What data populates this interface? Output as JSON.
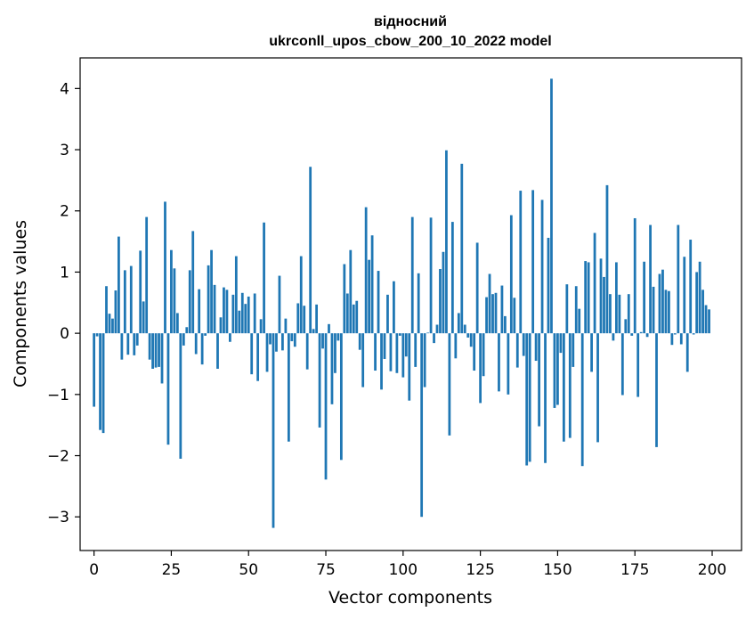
{
  "chart_data": {
    "type": "bar",
    "title_line1": "відносний",
    "title_line2": "ukrconll_upos_cbow_200_10_2022 model",
    "xlabel": "Vector components",
    "ylabel": "Components values",
    "xlim": [
      -4.5,
      209.5
    ],
    "ylim": [
      -3.55,
      4.5
    ],
    "xticks": [
      0,
      25,
      50,
      75,
      100,
      125,
      150,
      175,
      200
    ],
    "yticks": [
      -3,
      -2,
      -1,
      0,
      1,
      2,
      3,
      4
    ],
    "grid": false,
    "legend": "none",
    "bar_color": "#1f77b4",
    "x": [
      0,
      1,
      2,
      3,
      4,
      5,
      6,
      7,
      8,
      9,
      10,
      11,
      12,
      13,
      14,
      15,
      16,
      17,
      18,
      19,
      20,
      21,
      22,
      23,
      24,
      25,
      26,
      27,
      28,
      29,
      30,
      31,
      32,
      33,
      34,
      35,
      36,
      37,
      38,
      39,
      40,
      41,
      42,
      43,
      44,
      45,
      46,
      47,
      48,
      49,
      50,
      51,
      52,
      53,
      54,
      55,
      56,
      57,
      58,
      59,
      60,
      61,
      62,
      63,
      64,
      65,
      66,
      67,
      68,
      69,
      70,
      71,
      72,
      73,
      74,
      75,
      76,
      77,
      78,
      79,
      80,
      81,
      82,
      83,
      84,
      85,
      86,
      87,
      88,
      89,
      90,
      91,
      92,
      93,
      94,
      95,
      96,
      97,
      98,
      99,
      100,
      101,
      102,
      103,
      104,
      105,
      106,
      107,
      108,
      109,
      110,
      111,
      112,
      113,
      114,
      115,
      116,
      117,
      118,
      119,
      120,
      121,
      122,
      123,
      124,
      125,
      126,
      127,
      128,
      129,
      130,
      131,
      132,
      133,
      134,
      135,
      136,
      137,
      138,
      139,
      140,
      141,
      142,
      143,
      144,
      145,
      146,
      147,
      148,
      149,
      150,
      151,
      152,
      153,
      154,
      155,
      156,
      157,
      158,
      159,
      160,
      161,
      162,
      163,
      164,
      165,
      166,
      167,
      168,
      169,
      170,
      171,
      172,
      173,
      174,
      175,
      176,
      177,
      178,
      179,
      180,
      181,
      182,
      183,
      184,
      185,
      186,
      187,
      188,
      189,
      190,
      191,
      192,
      193,
      194,
      195,
      196,
      197,
      198,
      199
    ],
    "values": [
      -1.2,
      -0.05,
      -1.58,
      -1.63,
      0.77,
      0.32,
      0.24,
      0.7,
      1.58,
      -0.43,
      1.03,
      -0.35,
      1.1,
      -0.36,
      -0.2,
      1.35,
      0.52,
      1.9,
      -0.43,
      -0.58,
      -0.56,
      -0.55,
      -0.82,
      2.15,
      -1.82,
      1.36,
      1.06,
      0.33,
      -2.05,
      -0.2,
      0.1,
      1.03,
      1.67,
      -0.34,
      0.72,
      -0.51,
      -0.04,
      1.11,
      1.36,
      0.79,
      -0.58,
      0.26,
      0.75,
      0.71,
      -0.14,
      0.63,
      1.26,
      0.37,
      0.66,
      0.48,
      0.6,
      -0.67,
      0.65,
      -0.78,
      0.23,
      1.81,
      -0.63,
      -0.18,
      -3.18,
      -0.3,
      0.94,
      -0.28,
      0.24,
      -1.77,
      -0.13,
      -0.22,
      0.49,
      1.26,
      0.45,
      -0.59,
      2.72,
      0.07,
      0.47,
      -1.54,
      -0.25,
      -2.39,
      0.15,
      -1.16,
      -0.65,
      -0.12,
      -2.07,
      1.13,
      0.65,
      1.36,
      0.47,
      0.53,
      -0.27,
      -0.88,
      2.06,
      1.2,
      1.6,
      -0.61,
      1.02,
      -0.92,
      -0.42,
      0.63,
      -0.62,
      0.85,
      -0.65,
      -0.04,
      -0.72,
      -0.38,
      -1.1,
      1.9,
      -0.55,
      0.98,
      -3.0,
      -0.88,
      0.01,
      1.89,
      -0.16,
      0.14,
      1.05,
      1.33,
      2.99,
      -1.67,
      1.82,
      -0.41,
      0.33,
      2.77,
      0.14,
      -0.07,
      -0.22,
      -0.61,
      1.48,
      -1.14,
      -0.7,
      0.59,
      0.97,
      0.64,
      0.66,
      -0.95,
      0.78,
      0.28,
      -1.0,
      1.93,
      0.58,
      -0.56,
      2.33,
      -0.37,
      -2.16,
      -2.1,
      2.34,
      -0.45,
      -1.52,
      2.18,
      -2.12,
      1.56,
      4.16,
      -1.22,
      -1.17,
      -0.32,
      -1.77,
      0.8,
      -1.71,
      -0.55,
      0.77,
      0.4,
      -2.17,
      1.18,
      1.16,
      -0.63,
      1.64,
      -1.78,
      1.22,
      0.92,
      2.42,
      0.64,
      -0.12,
      1.16,
      0.63,
      -1.01,
      0.23,
      0.64,
      -0.04,
      1.88,
      -1.04,
      0.02,
      1.17,
      -0.06,
      1.77,
      0.76,
      -1.86,
      0.97,
      1.04,
      0.71,
      0.69,
      -0.19,
      -0.02,
      1.77,
      -0.18,
      1.25,
      -0.63,
      1.53,
      -0.02,
      1.0,
      1.17,
      0.71,
      0.46,
      0.39
    ]
  }
}
